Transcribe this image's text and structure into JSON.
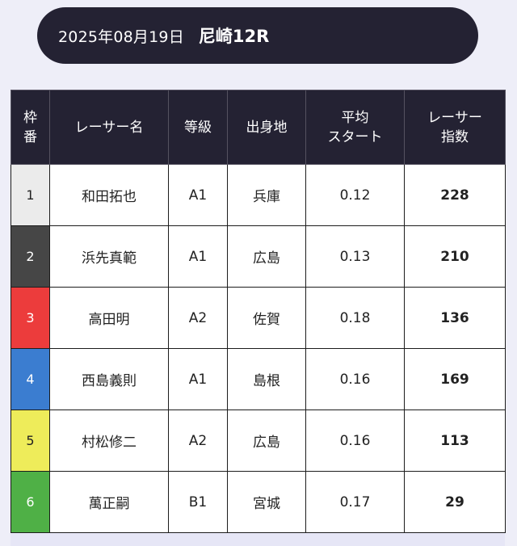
{
  "header": {
    "date": "2025年08月19日",
    "race": "尼崎12R"
  },
  "columns": {
    "frame": [
      "枠",
      "番"
    ],
    "racer_name": [
      "レーサー名"
    ],
    "grade": [
      "等級"
    ],
    "hometown": [
      "出身地"
    ],
    "avg_start": [
      "平均",
      "スタート"
    ],
    "racer_index": [
      "レーサー",
      "指数"
    ]
  },
  "rows": [
    {
      "frame": "1",
      "name": "和田拓也",
      "grade": "A1",
      "hometown": "兵庫",
      "avg_start": "0.12",
      "index": "228",
      "frame_color": "#ebebeb",
      "frame_text": "#222222"
    },
    {
      "frame": "2",
      "name": "浜先真範",
      "grade": "A1",
      "hometown": "広島",
      "avg_start": "0.13",
      "index": "210",
      "frame_color": "#464646",
      "frame_text": "#ffffff"
    },
    {
      "frame": "3",
      "name": "高田明",
      "grade": "A2",
      "hometown": "佐賀",
      "avg_start": "0.18",
      "index": "136",
      "frame_color": "#ec3c3c",
      "frame_text": "#ffffff"
    },
    {
      "frame": "4",
      "name": "西島義則",
      "grade": "A1",
      "hometown": "島根",
      "avg_start": "0.16",
      "index": "169",
      "frame_color": "#3b7dd0",
      "frame_text": "#ffffff"
    },
    {
      "frame": "5",
      "name": "村松修二",
      "grade": "A2",
      "hometown": "広島",
      "avg_start": "0.16",
      "index": "113",
      "frame_color": "#eeec5a",
      "frame_text": "#222222"
    },
    {
      "frame": "6",
      "name": "萬正嗣",
      "grade": "B1",
      "hometown": "宮城",
      "avg_start": "0.17",
      "index": "29",
      "frame_color": "#4fb046",
      "frame_text": "#ffffff"
    }
  ]
}
